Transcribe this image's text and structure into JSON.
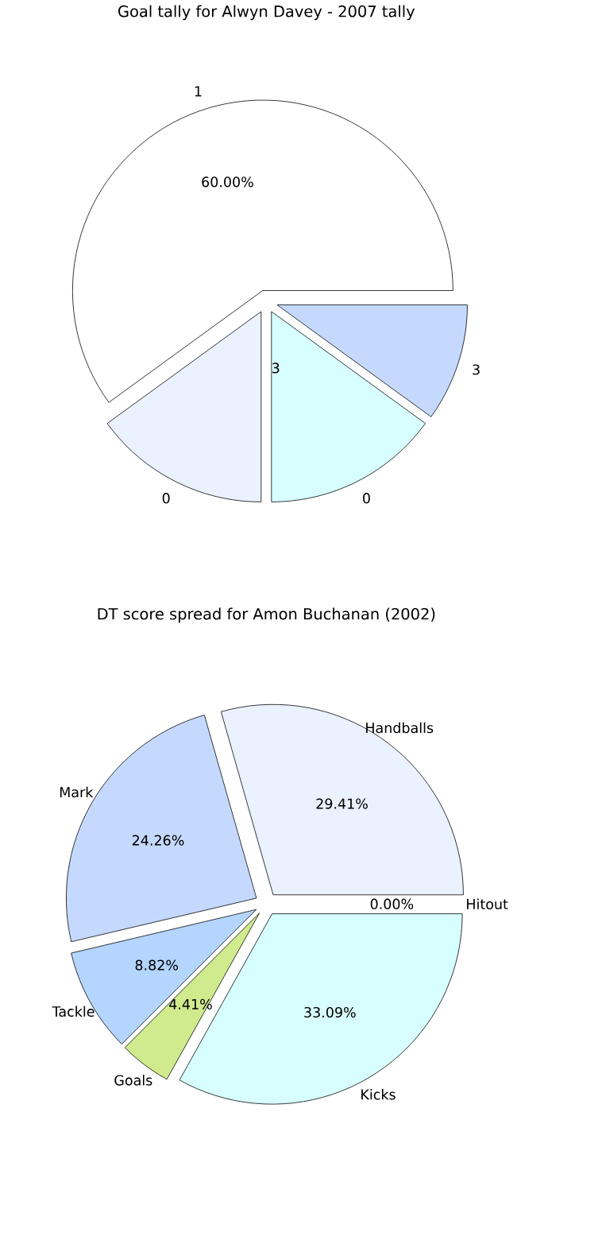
{
  "chart_data": [
    {
      "type": "pie",
      "title": "Goal tally for Alwyn Davey - 2007 tally",
      "categories": [
        "1",
        "0",
        "0",
        "3"
      ],
      "values": [
        60,
        15,
        15,
        10
      ],
      "value_labels": [
        "60.00%",
        null,
        null,
        null
      ],
      "colors": [
        "#ffffff",
        "#eaf1ff",
        "#d8ffff",
        "#c5d9ff"
      ],
      "annotations": [
        "3"
      ]
    },
    {
      "type": "pie",
      "title": "DT score spread for Amon Buchanan (2002)",
      "categories": [
        "Handballs",
        "Mark",
        "Tackle",
        "Goals",
        "Kicks",
        "Hitout"
      ],
      "values": [
        29.41,
        24.26,
        8.82,
        4.41,
        33.09,
        0.0
      ],
      "value_labels": [
        "29.41%",
        "24.26%",
        "8.82%",
        "4.41%",
        "33.09%",
        "0.00%"
      ],
      "colors": [
        "#eaf1ff",
        "#c5d9ff",
        "#b3d5ff",
        "#d0eb8e",
        "#d8ffff",
        "#ffffff"
      ]
    }
  ]
}
